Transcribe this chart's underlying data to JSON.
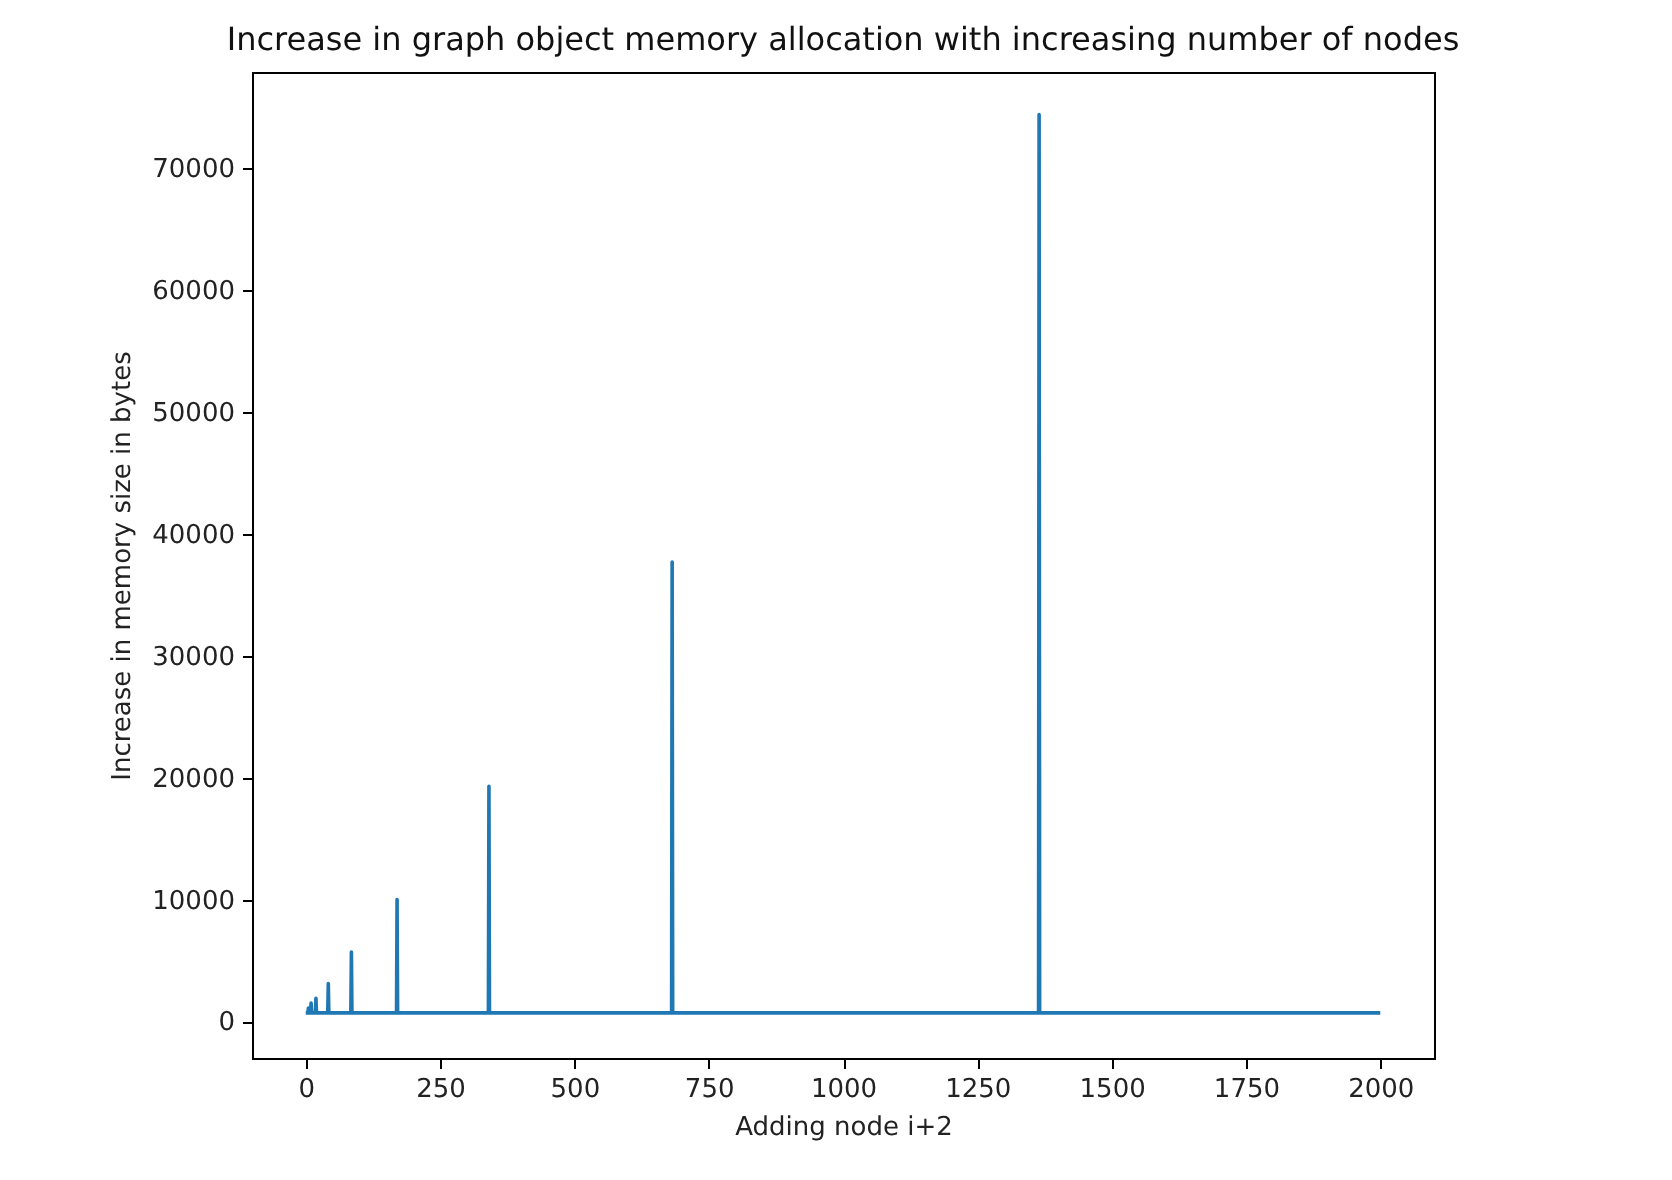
{
  "chart_data": {
    "type": "line",
    "title": "Increase in graph object memory allocation with increasing number of nodes",
    "xlabel": "Adding node i+2",
    "ylabel": "Increase in memory size in bytes",
    "x": [
      0,
      4,
      5,
      6,
      9,
      10,
      11,
      18,
      19,
      20,
      41,
      42,
      43,
      84,
      85,
      86,
      169,
      170,
      171,
      340,
      341,
      342,
      681,
      682,
      683,
      1364,
      1365,
      1366,
      2000
    ],
    "series": [
      {
        "color": "#1f77b4",
        "values": [
          700,
          700,
          1100,
          700,
          700,
          1500,
          700,
          700,
          1900,
          700,
          700,
          3100,
          700,
          700,
          5700,
          700,
          700,
          10000,
          700,
          700,
          19300,
          700,
          700,
          37700,
          700,
          700,
          74400,
          700,
          700
        ]
      }
    ],
    "xlim": [
      -100,
      2100
    ],
    "ylim": [
      -3000,
      77900
    ],
    "xticks": [
      0,
      250,
      500,
      750,
      1000,
      1250,
      1500,
      1750,
      2000
    ],
    "yticks": [
      0,
      10000,
      20000,
      30000,
      40000,
      50000,
      60000,
      70000
    ],
    "grid": false,
    "marker": "none",
    "line_style": "solid"
  }
}
